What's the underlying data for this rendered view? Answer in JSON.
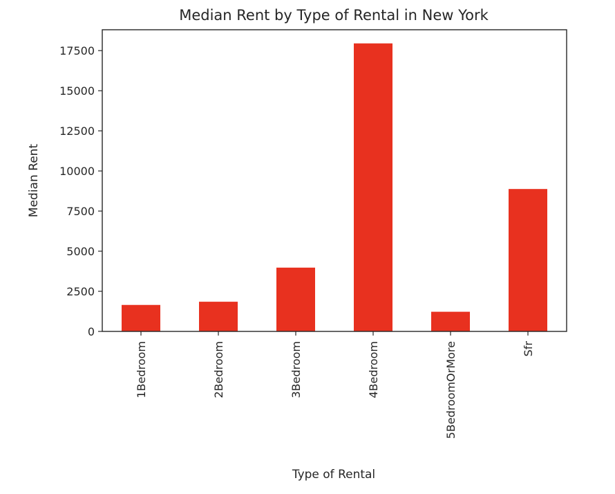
{
  "chart_data": {
    "type": "bar",
    "title": "Median Rent by Type of Rental in New York",
    "xlabel": "Type of Rental",
    "ylabel": "Median Rent",
    "categories": [
      "1Bedroom",
      "2Bedroom",
      "3Bedroom",
      "4Bedroom",
      "5BedroomOrMore",
      "Sfr"
    ],
    "values": [
      1650,
      1850,
      3975,
      17950,
      1225,
      8875
    ],
    "ylim": [
      0,
      18800
    ],
    "yticks": [
      0,
      2500,
      5000,
      7500,
      10000,
      12500,
      15000,
      17500
    ],
    "bar_color": "#e8311f",
    "grid": false,
    "legend": "none"
  }
}
